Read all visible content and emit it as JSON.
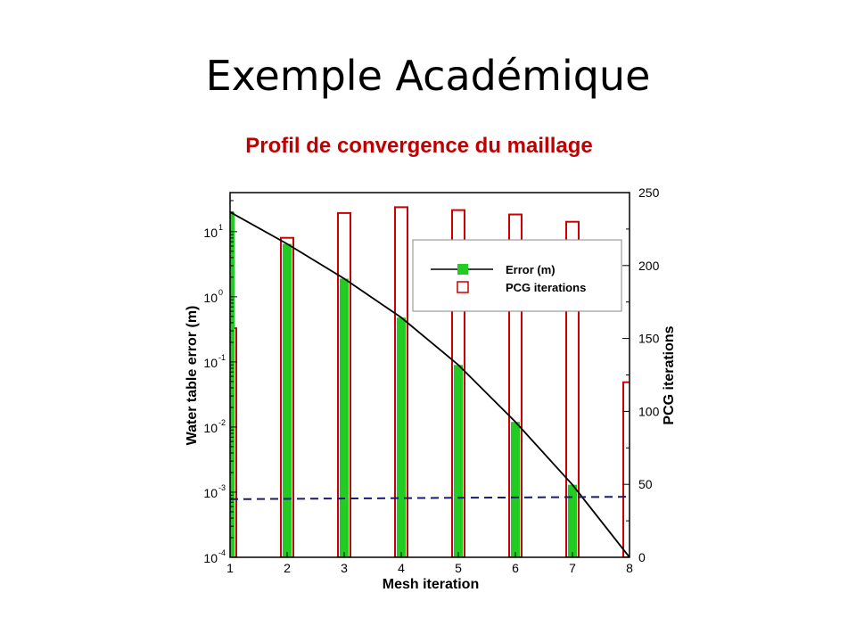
{
  "slide": {
    "title": "Exemple Académique",
    "subtitle": "Profil de convergence du maillage"
  },
  "colors": {
    "subtitle": "#c00000",
    "error_bar_fill": "#22cc22",
    "pcg_bar_stroke": "#cc0000",
    "error_line": "#000000",
    "dashed_line": "#1a1a6e"
  },
  "chart_data": {
    "type": "bar",
    "x": [
      1,
      2,
      3,
      4,
      5,
      6,
      7,
      8
    ],
    "xlabel": "Mesh iteration",
    "ylabel_left": "Water table error (m)",
    "ylabel_right": "PCG iterations",
    "x_ticks": [
      "1",
      "2",
      "3",
      "4",
      "5",
      "6",
      "7",
      "8"
    ],
    "y_left_scale": "log",
    "y_left_lim": [
      0.0001,
      40
    ],
    "y_left_ticks": [
      {
        "base": "10",
        "exp": "-4",
        "value": 0.0001
      },
      {
        "base": "10",
        "exp": "-3",
        "value": 0.001
      },
      {
        "base": "10",
        "exp": "-2",
        "value": 0.01
      },
      {
        "base": "10",
        "exp": "-1",
        "value": 0.1
      },
      {
        "base": "10",
        "exp": "0",
        "value": 1
      },
      {
        "base": "10",
        "exp": "1",
        "value": 10
      }
    ],
    "y_right_lim": [
      0,
      250
    ],
    "y_right_ticks": [
      "0",
      "50",
      "100",
      "150",
      "200",
      "250"
    ],
    "grid": false,
    "legend_position": "top-right",
    "series": [
      {
        "name": "Error (m)",
        "kind": "bar+line",
        "axis": "left",
        "values": [
          20,
          6.5,
          1.9,
          0.48,
          0.09,
          0.012,
          0.0013,
          0.0001
        ]
      },
      {
        "name": "PCG iterations",
        "kind": "hollow-bar",
        "axis": "right",
        "values": [
          157,
          219,
          236,
          240,
          238,
          235,
          230,
          120
        ]
      },
      {
        "kind": "dashed-line",
        "axis": "left",
        "values": [
          0.00078,
          0.00079,
          0.0008,
          0.00081,
          0.00082,
          0.00083,
          0.00084,
          0.00085
        ]
      }
    ]
  }
}
